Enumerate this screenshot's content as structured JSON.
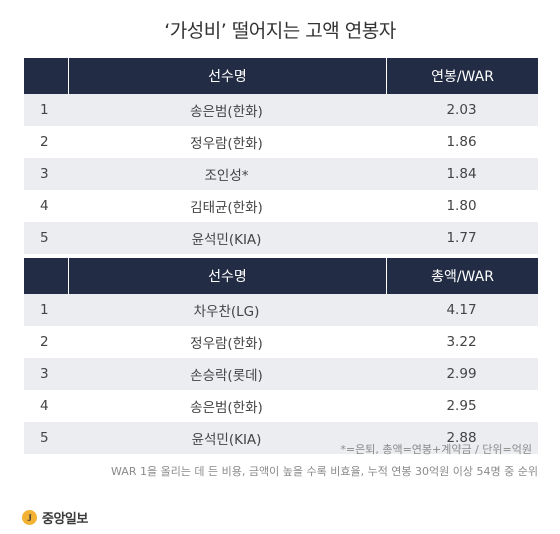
{
  "title": "‘가성비’ 떨어지는 고액 연봉자",
  "table1": {
    "header": {
      "rank": "",
      "name": "선수명",
      "value": "연봉/WAR"
    },
    "rows": [
      {
        "rank": "1",
        "name": "송은범(한화)",
        "value": "2.03"
      },
      {
        "rank": "2",
        "name": "정우람(한화)",
        "value": "1.86"
      },
      {
        "rank": "3",
        "name": "조인성*",
        "value": "1.84"
      },
      {
        "rank": "4",
        "name": "김태균(한화)",
        "value": "1.80"
      },
      {
        "rank": "5",
        "name": "윤석민(KIA)",
        "value": "1.77"
      }
    ]
  },
  "table2": {
    "header": {
      "rank": "",
      "name": "선수명",
      "value": "총액/WAR"
    },
    "rows": [
      {
        "rank": "1",
        "name": "차우찬(LG)",
        "value": "4.17"
      },
      {
        "rank": "2",
        "name": "정우람(한화)",
        "value": "3.22"
      },
      {
        "rank": "3",
        "name": "손승락(롯데)",
        "value": "2.99"
      },
      {
        "rank": "4",
        "name": "송은범(한화)",
        "value": "2.95"
      },
      {
        "rank": "5",
        "name": "윤석민(KIA)",
        "value": "2.88"
      }
    ]
  },
  "notes": {
    "line1": "*=은퇴, 총액=연봉+계약금 / 단위=억원",
    "line2": "WAR 1을 올리는 데 든 비용, 금액이 높을 수록 비효율, 누적 연봉 30억원 이상 54명 중 순위"
  },
  "logo": {
    "mark": "J",
    "text": "중앙일보",
    "color": "#f2b233"
  },
  "colors": {
    "header_bg": "#232c45",
    "stripe": "#ebedf1"
  }
}
